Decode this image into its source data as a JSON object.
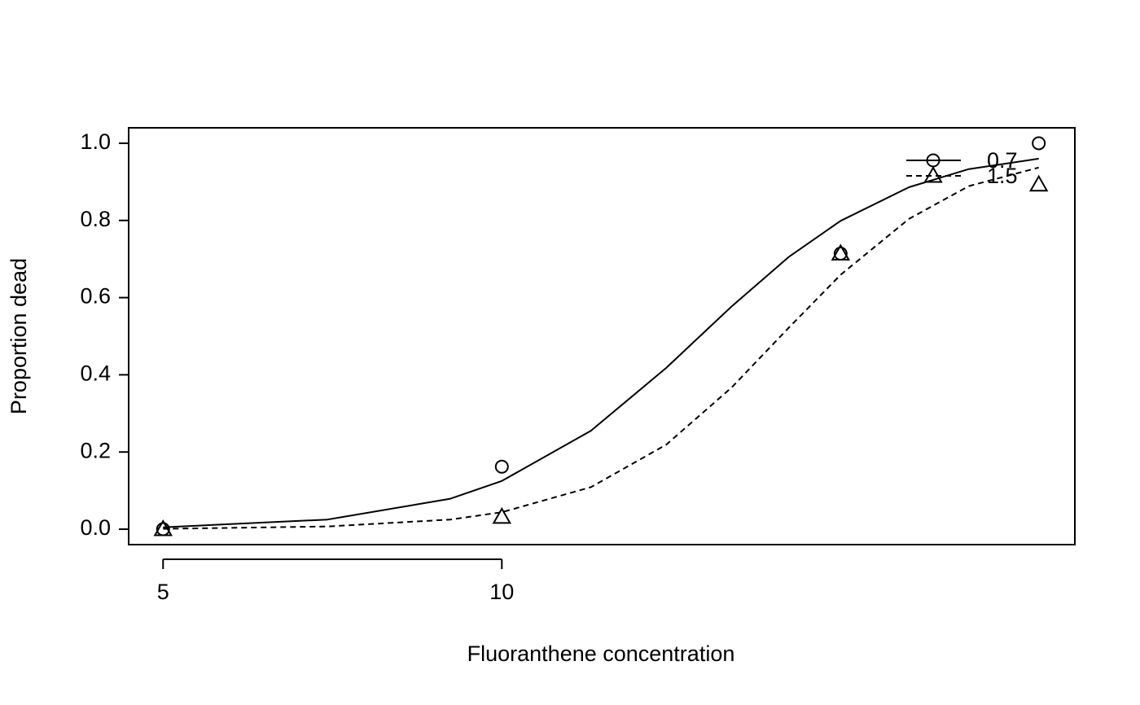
{
  "chart_data": {
    "type": "scatter",
    "xlabel": "Fluoranthene concentration",
    "ylabel": "Proportion dead",
    "log_x": true,
    "x": [
      5,
      10,
      20,
      30
    ],
    "xlim": [
      4.66,
      32.3
    ],
    "ylim": [
      -0.04,
      1.04
    ],
    "xticks": [
      5,
      10
    ],
    "yticks": [
      {
        "value": 0,
        "label": "0.0"
      },
      {
        "value": 0.2,
        "label": "0.2"
      },
      {
        "value": 0.4,
        "label": "0.4"
      },
      {
        "value": 0.6,
        "label": "0.6"
      },
      {
        "value": 0.8,
        "label": "0.8"
      },
      {
        "value": 1,
        "label": "1.0"
      }
    ],
    "legend": "topright",
    "series": [
      {
        "name": "0.7",
        "color": "#000000",
        "marker": "circle",
        "dash": false,
        "values": [
          0,
          0.162,
          0.714,
          1.0
        ],
        "fit_x": [
          5,
          7,
          9,
          10,
          12,
          14,
          16,
          18,
          20,
          23,
          26,
          30
        ],
        "fit_values": [
          0.005,
          0.025,
          0.079,
          0.125,
          0.255,
          0.418,
          0.577,
          0.706,
          0.799,
          0.886,
          0.933,
          0.96
        ]
      },
      {
        "name": "1.5",
        "color": "#000000",
        "marker": "triangle",
        "dash": true,
        "values": [
          0,
          0.032,
          0.714,
          0.893
        ],
        "fit_x": [
          5,
          7,
          9,
          10,
          12,
          14,
          16,
          18,
          20,
          23,
          26,
          30
        ],
        "fit_values": [
          0.001,
          0.007,
          0.025,
          0.044,
          0.109,
          0.219,
          0.367,
          0.523,
          0.659,
          0.804,
          0.889,
          0.937
        ]
      }
    ]
  }
}
